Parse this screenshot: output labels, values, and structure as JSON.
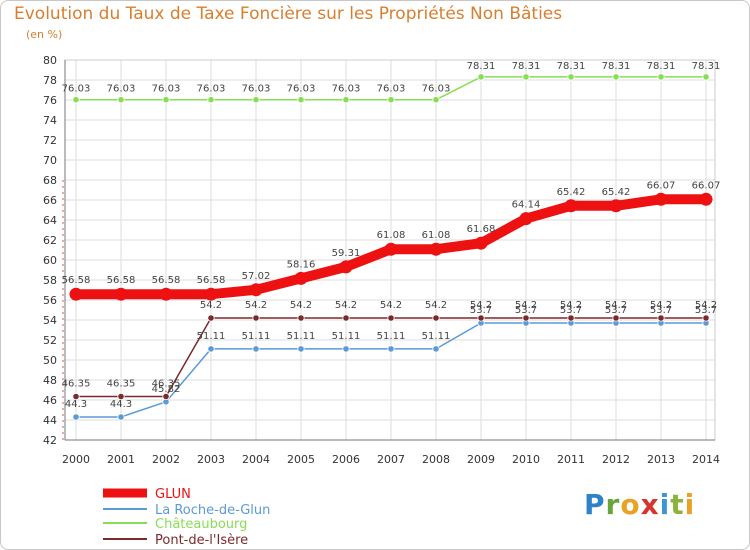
{
  "chart_data": {
    "type": "line",
    "title": "Evolution du Taux de Taxe Foncière sur les Propriétés Non Bâties",
    "subtitle": "(en %)",
    "xlabel": "",
    "ylabel": "",
    "ylim": [
      42,
      80
    ],
    "yticks": [
      42,
      44,
      46,
      48,
      50,
      52,
      54,
      56,
      58,
      60,
      62,
      64,
      66,
      68,
      70,
      72,
      74,
      76,
      78,
      80
    ],
    "x": [
      "2000",
      "2001",
      "2002",
      "2003",
      "2004",
      "2005",
      "2006",
      "2007",
      "2008",
      "2009",
      "2010",
      "2011",
      "2012",
      "2013",
      "2014"
    ],
    "series": [
      {
        "name": "GLUN",
        "color": "#ee1111",
        "values": [
          56.58,
          56.58,
          56.58,
          56.58,
          57.02,
          58.16,
          59.31,
          61.08,
          61.08,
          61.68,
          64.14,
          65.42,
          65.42,
          66.07,
          66.07
        ],
        "labels": [
          "56.58",
          "56.58",
          "56.58",
          "56.58",
          "57.02",
          "58.16",
          "59.31",
          "61.08",
          "61.08",
          "61.68",
          "64.14",
          "65.42",
          "65.42",
          "66.07",
          "66.07"
        ]
      },
      {
        "name": "La Roche-de-Glun",
        "color": "#5b9ad5",
        "values": [
          44.3,
          44.3,
          45.82,
          51.11,
          51.11,
          51.11,
          51.11,
          51.11,
          51.11,
          53.7,
          53.7,
          53.7,
          53.7,
          53.7,
          53.7
        ],
        "labels": [
          "44.3",
          "44.3",
          "45.82",
          "51.11",
          "51.11",
          "51.11",
          "51.11",
          "51.11",
          "51.11",
          "53.7",
          "53.7",
          "53.7",
          "53.7",
          "53.7",
          "53.7"
        ]
      },
      {
        "name": "Châteaubourg",
        "color": "#88dd55",
        "values": [
          76.03,
          76.03,
          76.03,
          76.03,
          76.03,
          76.03,
          76.03,
          76.03,
          76.03,
          78.31,
          78.31,
          78.31,
          78.31,
          78.31,
          78.31
        ],
        "labels": [
          "76.03",
          "76.03",
          "76.03",
          "76.03",
          "76.03",
          "76.03",
          "76.03",
          "76.03",
          "76.03",
          "78.31",
          "78.31",
          "78.31",
          "78.31",
          "78.31",
          "78.31"
        ]
      },
      {
        "name": "Pont-de-l'Isère",
        "color": "#7b2a2a",
        "values": [
          46.35,
          46.35,
          46.35,
          54.2,
          54.2,
          54.2,
          54.2,
          54.2,
          54.2,
          54.2,
          54.2,
          54.2,
          54.2,
          54.2,
          54.2
        ],
        "labels": [
          "46.35",
          "46.35",
          "46.35",
          "54.2",
          "54.2",
          "54.2",
          "54.2",
          "54.2",
          "54.2",
          "54.2",
          "54.2",
          "54.2",
          "54.2",
          "54.2",
          "54.2"
        ]
      }
    ]
  },
  "logo": {
    "p": "P",
    "r": "r",
    "o": "o",
    "x": "x",
    "i1": "i",
    "t": "t",
    "i2": "i"
  }
}
